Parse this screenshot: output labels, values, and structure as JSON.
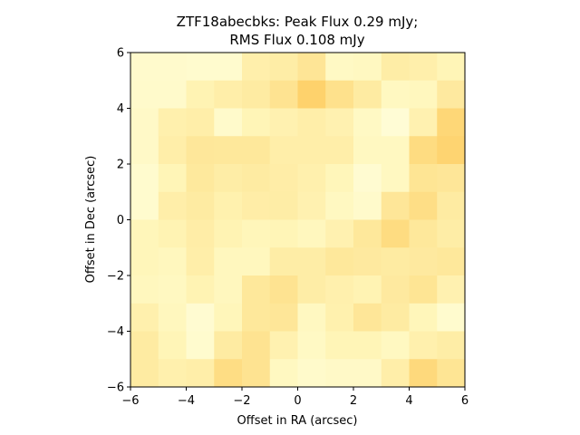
{
  "chart_data": {
    "type": "heatmap",
    "title_lines": [
      "ZTF18abecbks: Peak Flux 0.29 mJy;",
      "RMS Flux 0.108 mJy"
    ],
    "xlabel": "Offset in RA (arcsec)",
    "ylabel": "Offset in Dec (arcsec)",
    "xlim": [
      -6,
      6
    ],
    "ylim": [
      -6,
      6
    ],
    "xticks": [
      -6,
      -4,
      -2,
      0,
      2,
      4,
      6
    ],
    "yticks": [
      -6,
      -4,
      -2,
      0,
      2,
      4,
      6
    ],
    "colormap": "YlOrBr",
    "grid": false,
    "rows_top_to_bottom": [
      [
        0.15,
        0.15,
        0.14,
        0.14,
        0.35,
        0.38,
        0.47,
        0.2,
        0.22,
        0.38,
        0.35,
        0.28
      ],
      [
        0.16,
        0.16,
        0.3,
        0.36,
        0.4,
        0.5,
        0.64,
        0.52,
        0.4,
        0.22,
        0.24,
        0.42
      ],
      [
        0.18,
        0.34,
        0.36,
        0.16,
        0.28,
        0.32,
        0.36,
        0.32,
        0.2,
        0.1,
        0.32,
        0.6
      ],
      [
        0.18,
        0.36,
        0.45,
        0.44,
        0.44,
        0.36,
        0.36,
        0.36,
        0.22,
        0.22,
        0.56,
        0.62
      ],
      [
        0.14,
        0.28,
        0.43,
        0.38,
        0.4,
        0.37,
        0.34,
        0.26,
        0.12,
        0.22,
        0.48,
        0.46
      ],
      [
        0.14,
        0.36,
        0.4,
        0.33,
        0.37,
        0.38,
        0.32,
        0.22,
        0.16,
        0.46,
        0.54,
        0.4
      ],
      [
        0.26,
        0.3,
        0.37,
        0.3,
        0.26,
        0.28,
        0.24,
        0.32,
        0.44,
        0.56,
        0.44,
        0.38
      ],
      [
        0.26,
        0.24,
        0.36,
        0.24,
        0.24,
        0.38,
        0.38,
        0.44,
        0.42,
        0.4,
        0.42,
        0.44
      ],
      [
        0.24,
        0.22,
        0.3,
        0.24,
        0.44,
        0.5,
        0.38,
        0.34,
        0.3,
        0.42,
        0.48,
        0.32
      ],
      [
        0.34,
        0.24,
        0.12,
        0.26,
        0.44,
        0.46,
        0.22,
        0.33,
        0.46,
        0.4,
        0.26,
        0.14
      ],
      [
        0.4,
        0.28,
        0.14,
        0.4,
        0.5,
        0.32,
        0.2,
        0.28,
        0.28,
        0.22,
        0.34,
        0.38
      ],
      [
        0.4,
        0.34,
        0.36,
        0.55,
        0.5,
        0.22,
        0.16,
        0.18,
        0.18,
        0.36,
        0.58,
        0.48
      ]
    ]
  }
}
